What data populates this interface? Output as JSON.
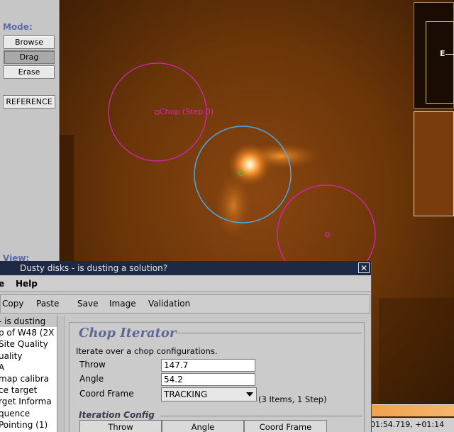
{
  "left_panel": {
    "mode_label": "Mode:",
    "buttons": [
      {
        "label": "Browse",
        "active": false
      },
      {
        "label": "Drag",
        "active": true
      },
      {
        "label": "Erase",
        "active": false
      }
    ],
    "reference_label": "REFERENCE",
    "view_label": "View:"
  },
  "image": {
    "chop_label": "Chop (Step 0)"
  },
  "thumbnail": {
    "compass_label": "E"
  },
  "status": {
    "coords": "01:54.719, +01:14"
  },
  "dialog": {
    "title": "Dusty disks - is dusting a solution?",
    "menu": [
      "e",
      "Help"
    ],
    "toolbar": [
      "Copy",
      "Paste",
      "Save",
      "Image",
      "Validation"
    ],
    "tree_items": [
      "- is dusting",
      "p of W48 (2X",
      "Site Quality",
      "uality",
      "A",
      "map calibra",
      "ce target",
      "rget Informa",
      "quence",
      "Pointing (1)"
    ],
    "editor": {
      "title": "Chop Iterator",
      "description": "Iterate over a chop configurations.",
      "throw_label": "Throw",
      "throw_value": "147.7",
      "angle_label": "Angle",
      "angle_value": "54.2",
      "coord_label": "Coord Frame",
      "coord_value": "TRACKING",
      "items_count": "(3 Items, 1 Step)",
      "iteration_title": "Iteration Config",
      "columns": [
        "Throw",
        "Angle",
        "Coord Frame"
      ]
    }
  },
  "colors": {
    "title_bar": "#1e2a45",
    "accent_label": "#5b6aa8",
    "chop_circle": "#e020c0",
    "target_circle": "#4aa8e8"
  }
}
